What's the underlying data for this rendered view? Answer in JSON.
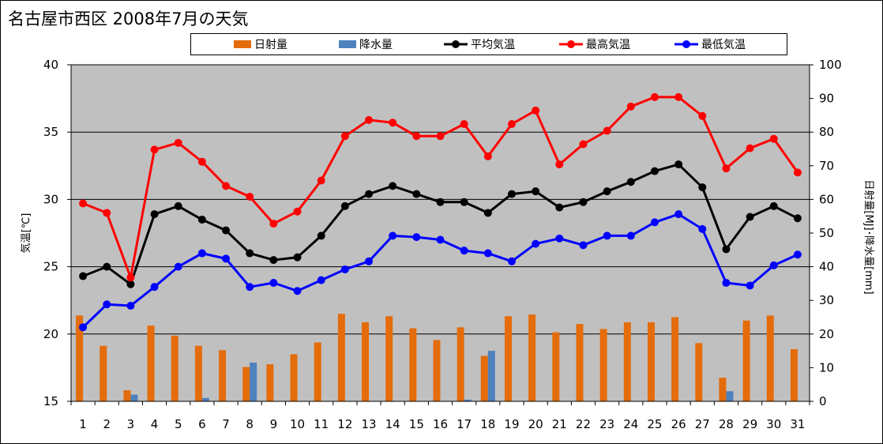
{
  "chart_data": {
    "type": "bar+line",
    "title": "名古屋市西区  2008年7月の天気",
    "x": [
      1,
      2,
      3,
      4,
      5,
      6,
      7,
      8,
      9,
      10,
      11,
      12,
      13,
      14,
      15,
      16,
      17,
      18,
      19,
      20,
      21,
      22,
      23,
      24,
      25,
      26,
      27,
      28,
      29,
      30,
      31
    ],
    "y_left": {
      "label": "気温[℃]",
      "lim": [
        15,
        40
      ],
      "ticks": [
        15,
        20,
        25,
        30,
        35,
        40
      ]
    },
    "y_right": {
      "label": "日射量[MJ]･降水量[mm]",
      "lim": [
        0,
        100
      ],
      "ticks": [
        0,
        10,
        20,
        30,
        40,
        50,
        60,
        70,
        80,
        90,
        100
      ]
    },
    "grid": true,
    "legend_position": "top",
    "series": [
      {
        "name": "日射量",
        "kind": "bar",
        "axis": "right",
        "color": "#E46C0A",
        "values": [
          25.5,
          16.5,
          3.3,
          22.5,
          19.5,
          16.5,
          15.2,
          10.2,
          11,
          14,
          17.5,
          26,
          23.5,
          25.3,
          21.7,
          18.2,
          22,
          13.5,
          25.3,
          25.8,
          20.5,
          23,
          21.5,
          23.5,
          23.5,
          25,
          17.3,
          7,
          24,
          25.5,
          15.5
        ]
      },
      {
        "name": "降水量",
        "kind": "bar",
        "axis": "right",
        "color": "#4F81BD",
        "values": [
          0,
          0,
          2,
          0,
          0,
          1,
          0,
          11.5,
          0,
          0,
          0,
          0,
          0,
          0,
          0,
          0,
          0.5,
          15,
          0,
          0,
          0,
          0,
          0,
          0,
          0,
          0,
          0,
          3,
          0,
          0,
          0
        ]
      },
      {
        "name": "平均気温",
        "kind": "line",
        "axis": "left",
        "color": "#000000",
        "values": [
          24.3,
          25,
          23.7,
          28.9,
          29.5,
          28.5,
          27.7,
          26,
          25.5,
          25.7,
          27.3,
          29.5,
          30.4,
          31,
          30.4,
          29.8,
          29.8,
          29,
          30.4,
          30.6,
          29.4,
          29.8,
          30.6,
          31.3,
          32.1,
          32.6,
          30.9,
          26.3,
          28.7,
          29.5,
          28.6
        ]
      },
      {
        "name": "最高気温",
        "kind": "line",
        "axis": "left",
        "color": "#FF0000",
        "values": [
          29.7,
          29,
          24.2,
          33.7,
          34.2,
          32.8,
          31,
          30.2,
          28.2,
          29.1,
          31.4,
          34.7,
          35.9,
          35.7,
          34.7,
          34.7,
          35.6,
          33.2,
          35.6,
          36.6,
          32.6,
          34.1,
          35.1,
          36.9,
          37.6,
          37.6,
          36.2,
          32.3,
          33.8,
          34.5,
          32
        ]
      },
      {
        "name": "最低気温",
        "kind": "line",
        "axis": "left",
        "color": "#0000FF",
        "values": [
          20.5,
          22.2,
          22.1,
          23.5,
          25,
          26,
          25.6,
          23.5,
          23.8,
          23.2,
          24,
          24.8,
          25.4,
          27.3,
          27.2,
          27,
          26.2,
          26,
          25.4,
          26.7,
          27.1,
          26.6,
          27.3,
          27.3,
          28.3,
          28.9,
          27.8,
          23.8,
          23.6,
          25.1,
          25.9
        ]
      }
    ]
  }
}
